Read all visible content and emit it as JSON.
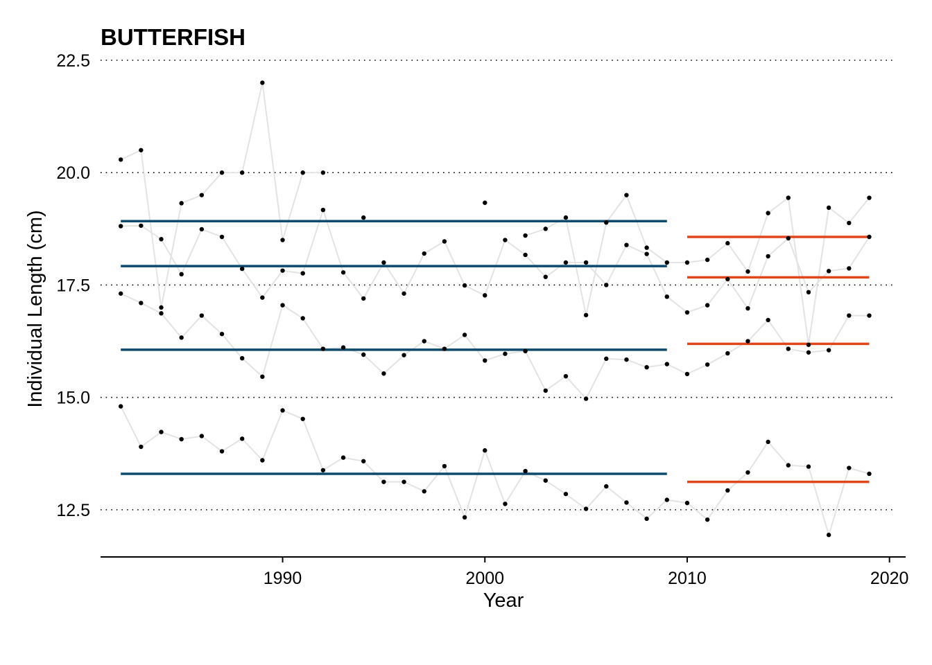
{
  "chart_data": {
    "type": "line",
    "title": "BUTTERFISH",
    "xlabel": "Year",
    "ylabel": "Individual Length (cm)",
    "xlim": [
      1981,
      2020.8
    ],
    "ylim": [
      11.45,
      22.5
    ],
    "x_ticks": [
      1990,
      2000,
      2010,
      2020
    ],
    "y_ticks": [
      12.5,
      15.0,
      17.5,
      20.0,
      22.5
    ],
    "y_tick_labels": [
      "12.5",
      "15.0",
      "17.5",
      "20.0",
      "22.5"
    ],
    "grid": "horizontal dotted",
    "legend": "none",
    "colors": {
      "series_line": "#e3e3e3",
      "points": "#000000",
      "early_mean": "#0e4a6e",
      "recent_mean": "#e0461c"
    },
    "x": [
      1982,
      1983,
      1984,
      1985,
      1986,
      1987,
      1988,
      1989,
      1990,
      1991,
      1992,
      1993,
      1994,
      1995,
      1996,
      1997,
      1998,
      1999,
      2000,
      2001,
      2002,
      2003,
      2004,
      2005,
      2006,
      2007,
      2008,
      2009,
      2010,
      2011,
      2012,
      2013,
      2014,
      2015,
      2016,
      2017,
      2018,
      2019
    ],
    "series": [
      {
        "values": [
          14.8,
          13.9,
          14.23,
          14.07,
          14.14,
          13.8,
          14.08,
          13.6,
          14.71,
          14.52,
          13.38,
          13.66,
          13.58,
          13.12,
          13.12,
          12.91,
          13.47,
          12.33,
          13.82,
          12.63,
          13.36,
          13.15,
          12.85,
          12.52,
          13.02,
          12.66,
          12.3,
          12.72,
          12.65,
          12.28,
          12.93,
          13.33,
          14.01,
          13.49,
          13.46,
          11.94,
          13.43,
          13.3
        ]
      },
      {
        "values": [
          17.31,
          17.1,
          16.87,
          16.33,
          16.82,
          16.41,
          15.87,
          15.46,
          17.05,
          16.76,
          16.08,
          16.11,
          15.95,
          15.53,
          15.94,
          16.25,
          16.08,
          16.39,
          15.82,
          15.97,
          16.03,
          15.15,
          15.47,
          14.97,
          15.86,
          15.84,
          15.67,
          15.74,
          15.52,
          15.73,
          15.98,
          16.25,
          16.72,
          16.08,
          16.0,
          16.05,
          16.82,
          16.82
        ]
      },
      {
        "values": [
          18.81,
          18.82,
          18.52,
          17.74,
          18.74,
          18.57,
          17.86,
          17.22,
          17.82,
          17.76,
          19.17,
          17.78,
          17.2,
          18.0,
          17.31,
          18.2,
          18.47,
          17.49,
          17.27,
          18.5,
          18.17,
          17.68,
          18.0,
          18.0,
          17.5,
          18.39,
          18.19,
          17.24,
          16.89,
          17.05,
          17.63,
          16.98,
          18.14,
          18.54,
          17.34,
          17.81,
          17.87,
          18.57
        ]
      },
      {
        "values": [
          20.29,
          20.5,
          17.0,
          19.32,
          19.5,
          20.0,
          20.0,
          22.0,
          18.5,
          20.0,
          20.0,
          null,
          19.0,
          null,
          null,
          null,
          null,
          null,
          19.33,
          null,
          18.6,
          18.75,
          19.0,
          16.83,
          18.89,
          19.5,
          18.33,
          18.0,
          18.0,
          18.06,
          18.43,
          17.8,
          19.1,
          19.44,
          16.17,
          19.22,
          18.88,
          19.44
        ]
      }
    ],
    "mean_lines": [
      {
        "period": [
          1982,
          2009
        ],
        "value": 18.92,
        "color": "#0e4a6e"
      },
      {
        "period": [
          1982,
          2009
        ],
        "value": 17.92,
        "color": "#0e4a6e"
      },
      {
        "period": [
          1982,
          2009
        ],
        "value": 16.06,
        "color": "#0e4a6e"
      },
      {
        "period": [
          1982,
          2009
        ],
        "value": 13.3,
        "color": "#0e4a6e"
      },
      {
        "period": [
          2010,
          2019
        ],
        "value": 18.57,
        "color": "#e0461c"
      },
      {
        "period": [
          2010,
          2019
        ],
        "value": 17.67,
        "color": "#e0461c"
      },
      {
        "period": [
          2010,
          2019
        ],
        "value": 16.19,
        "color": "#e0461c"
      },
      {
        "period": [
          2010,
          2019
        ],
        "value": 13.12,
        "color": "#e0461c"
      }
    ]
  }
}
